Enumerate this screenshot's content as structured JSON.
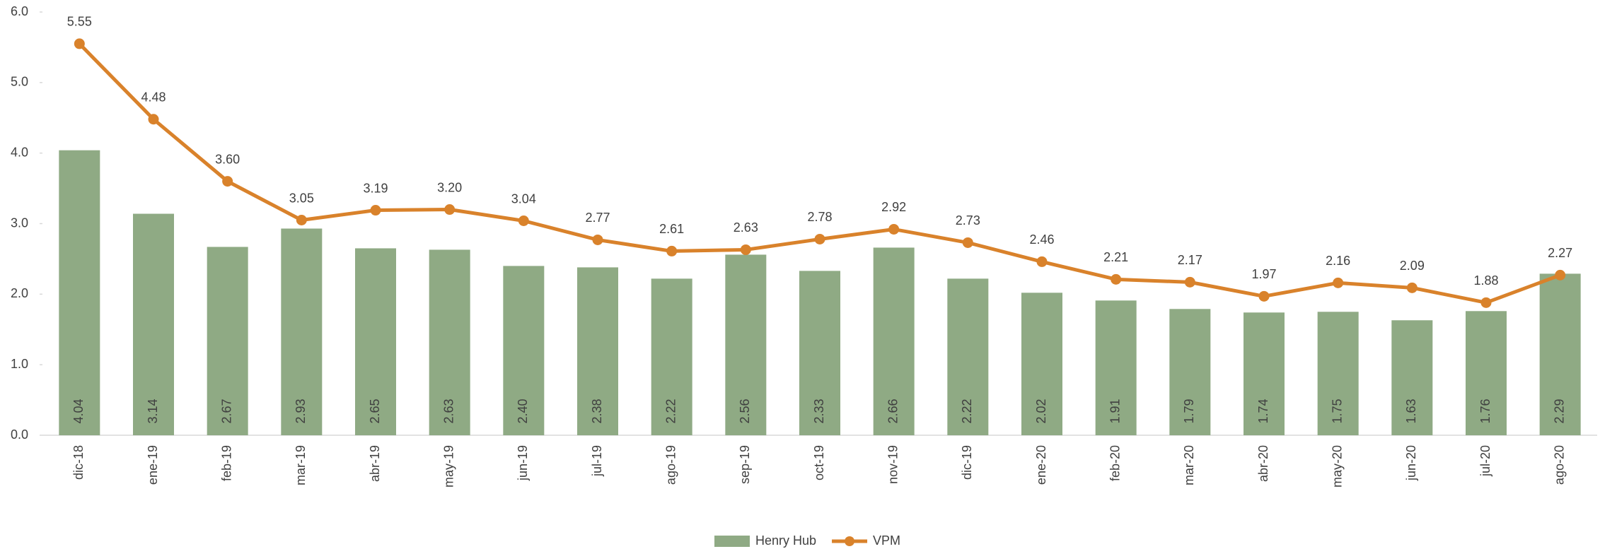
{
  "chart_data": {
    "type": "combo",
    "categories": [
      "dic-18",
      "ene-19",
      "feb-19",
      "mar-19",
      "abr-19",
      "may-19",
      "jun-19",
      "jul-19",
      "ago-19",
      "sep-19",
      "oct-19",
      "nov-19",
      "dic-19",
      "ene-20",
      "feb-20",
      "mar-20",
      "abr-20",
      "may-20",
      "jun-20",
      "jul-20",
      "ago-20"
    ],
    "series": [
      {
        "name": "Henry Hub",
        "type": "bar",
        "color": "#8faa84",
        "values": [
          4.04,
          3.14,
          2.67,
          2.93,
          2.65,
          2.63,
          2.4,
          2.38,
          2.22,
          2.56,
          2.33,
          2.66,
          2.22,
          2.02,
          1.91,
          1.79,
          1.74,
          1.75,
          1.63,
          1.76,
          2.29
        ],
        "value_labels": [
          "4.04",
          "3.14",
          "2.67",
          "2.93",
          "2.65",
          "2.63",
          "2.40",
          "2.38",
          "2.22",
          "2.56",
          "2.33",
          "2.66",
          "2.22",
          "2.02",
          "1.91",
          "1.79",
          "1.74",
          "1.75",
          "1.63",
          "1.76",
          "2.29"
        ]
      },
      {
        "name": "VPM",
        "type": "line",
        "color": "#d9822b",
        "values": [
          5.55,
          4.48,
          3.6,
          3.05,
          3.19,
          3.2,
          3.04,
          2.77,
          2.61,
          2.63,
          2.78,
          2.92,
          2.73,
          2.46,
          2.21,
          2.17,
          1.97,
          2.16,
          2.09,
          1.88,
          2.27
        ],
        "value_labels": [
          "5.55",
          "4.48",
          "3.60",
          "3.05",
          "3.19",
          "3.20",
          "3.04",
          "2.77",
          "2.61",
          "2.63",
          "2.78",
          "2.92",
          "2.73",
          "2.46",
          "2.21",
          "2.17",
          "1.97",
          "2.16",
          "2.09",
          "1.88",
          "2.27"
        ]
      }
    ],
    "ylim": [
      0,
      6
    ],
    "yticks": [
      {
        "value": 0,
        "label": "0.0"
      },
      {
        "value": 1,
        "label": "1.0"
      },
      {
        "value": 2,
        "label": "2.0"
      },
      {
        "value": 3,
        "label": "3.0"
      },
      {
        "value": 4,
        "label": "4.0"
      },
      {
        "value": 5,
        "label": "5.0"
      },
      {
        "value": 6,
        "label": "6.0"
      }
    ],
    "grid": false,
    "legend": "bottom"
  }
}
